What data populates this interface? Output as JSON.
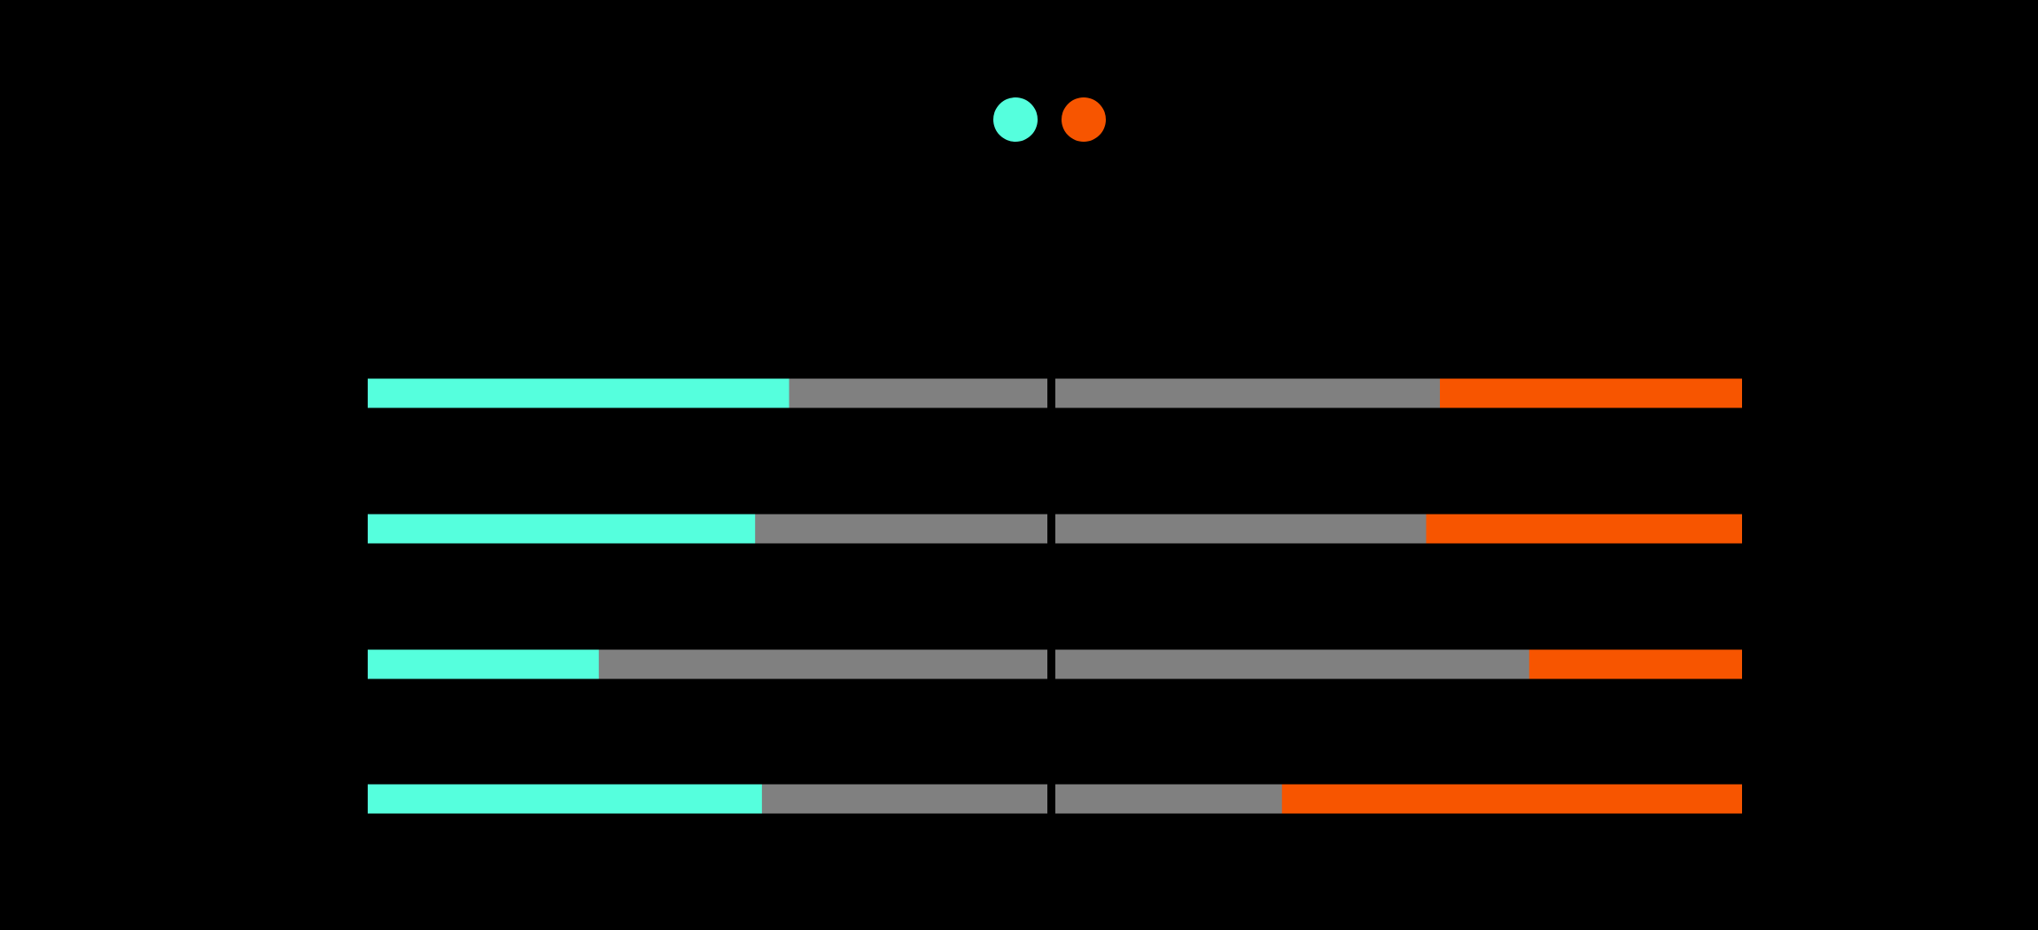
{
  "chart_data": {
    "type": "bar",
    "orientation": "horizontal",
    "layout": "diverging-split",
    "xlim": [
      0,
      100
    ],
    "track_color": "#808080",
    "legend": "top",
    "series": [
      {
        "color": "#55ffdd",
        "values": [
          62,
          57,
          34,
          58
        ]
      },
      {
        "color": "#f75500",
        "values": [
          44,
          46,
          31,
          67
        ]
      }
    ]
  }
}
